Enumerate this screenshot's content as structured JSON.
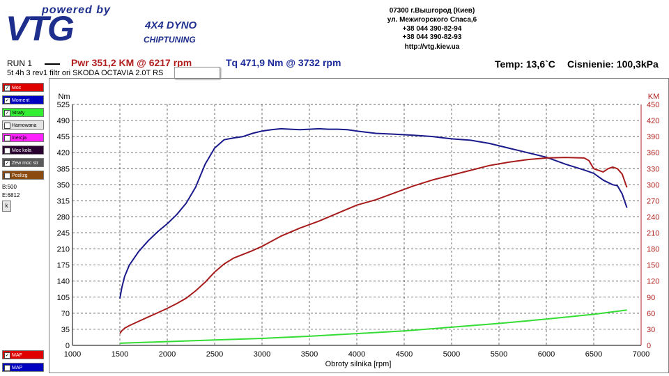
{
  "logo": {
    "powered": "powered by",
    "brand": "VTG",
    "line1": "4X4 DYNO",
    "line2": "CHIPTUNING"
  },
  "address": [
    "07300 г.Вышгород (Киев)",
    "ул. Межигорского Спаса,6",
    "+38 044 390-82-94",
    "+38 044 390-82-93",
    "http://vtg.kiev.ua"
  ],
  "header": {
    "run": "RUN 1",
    "power": "Pwr  351,2 KM @ 6217 rpm",
    "torque": "Tq 471,9 Nm @ 3732 rpm",
    "temp": "Temp: 13,6`C",
    "pressure": "Cisnienie: 100,3kPa",
    "description": "5t 4h 3 rev1 filtr ori SKODA OCTAVIA 2.0T RS"
  },
  "panel": {
    "items": [
      {
        "label": "Moc",
        "color": "#e00000",
        "checked": true
      },
      {
        "label": "Moment",
        "color": "#0000c0",
        "checked": true
      },
      {
        "label": "Straty",
        "color": "#33ee33",
        "checked": true
      },
      {
        "label": "Hamowana",
        "color": "#e4e4e4",
        "checked": false
      },
      {
        "label": "Inercja",
        "color": "#ff22ff",
        "checked": false
      },
      {
        "label": "Moc koła",
        "color": "#2a0030",
        "checked": false
      },
      {
        "label": "Zew moc str",
        "color": "#5a5a5a",
        "checked": true
      },
      {
        "label": "Poslizg",
        "color": "#8a4a10",
        "checked": false
      }
    ],
    "b_value": "B:500",
    "e_value": "E:6812",
    "k_button": "k",
    "bottom_items": [
      {
        "label": "MAF",
        "color": "#e00000",
        "checked": true
      },
      {
        "label": "MAP",
        "color": "#0000c0",
        "checked": false
      }
    ]
  },
  "chart_data": {
    "type": "line",
    "xlabel": "Obroty silnika [rpm]",
    "xlim": [
      1000,
      7000
    ],
    "x_ticks": [
      1000,
      1500,
      2000,
      2500,
      3000,
      3500,
      4000,
      4500,
      5000,
      5500,
      6000,
      6500,
      7000
    ],
    "left_axis": {
      "unit": "Nm",
      "lim": [
        0,
        525
      ],
      "ticks": [
        0,
        35,
        70,
        105,
        140,
        175,
        210,
        245,
        280,
        315,
        350,
        385,
        420,
        455,
        490,
        525
      ]
    },
    "right_axis": {
      "unit": "KM",
      "lim": [
        0,
        450
      ],
      "ticks": [
        0,
        30,
        60,
        90,
        120,
        150,
        180,
        210,
        240,
        270,
        300,
        330,
        360,
        390,
        420,
        450
      ]
    },
    "grid": true,
    "series": [
      {
        "key": "torque",
        "axis": "left",
        "color": "#1a1a8c",
        "x": [
          1500,
          1520,
          1550,
          1600,
          1700,
          1800,
          1900,
          2000,
          2100,
          2200,
          2300,
          2400,
          2500,
          2600,
          2700,
          2800,
          2900,
          3000,
          3100,
          3200,
          3300,
          3400,
          3500,
          3600,
          3700,
          3800,
          3900,
          4000,
          4200,
          4400,
          4600,
          4800,
          5000,
          5200,
          5400,
          5600,
          5800,
          6000,
          6200,
          6400,
          6500,
          6600,
          6700,
          6750,
          6800,
          6850
        ],
        "y": [
          102,
          125,
          150,
          175,
          205,
          228,
          248,
          265,
          285,
          310,
          345,
          395,
          430,
          448,
          452,
          455,
          462,
          467,
          470,
          472,
          471,
          470,
          471,
          472,
          471,
          471,
          470,
          467,
          462,
          460,
          458,
          455,
          450,
          447,
          440,
          430,
          420,
          410,
          395,
          382,
          375,
          360,
          350,
          348,
          330,
          300
        ]
      },
      {
        "key": "power",
        "axis": "right",
        "color": "#a81c1c",
        "x": [
          1500,
          1520,
          1550,
          1600,
          1700,
          1800,
          1900,
          2000,
          2100,
          2200,
          2300,
          2400,
          2500,
          2600,
          2700,
          2800,
          2900,
          3000,
          3200,
          3400,
          3600,
          3800,
          4000,
          4200,
          4400,
          4600,
          4800,
          5000,
          5200,
          5400,
          5600,
          5800,
          6000,
          6200,
          6400,
          6450,
          6500,
          6600,
          6650,
          6700,
          6750,
          6800,
          6850
        ],
        "y": [
          22,
          27,
          32,
          37,
          45,
          53,
          61,
          69,
          78,
          88,
          102,
          118,
          137,
          152,
          163,
          170,
          177,
          185,
          204,
          219,
          232,
          247,
          262,
          272,
          285,
          298,
          309,
          318,
          327,
          336,
          342,
          347,
          350,
          351,
          350,
          345,
          330,
          324,
          330,
          333,
          330,
          320,
          295
        ]
      },
      {
        "key": "losses",
        "axis": "right",
        "color": "#33dd33",
        "x": [
          1500,
          2000,
          2500,
          3000,
          3500,
          4000,
          4500,
          5000,
          5500,
          6000,
          6500,
          6850
        ],
        "y": [
          4,
          7,
          10,
          13,
          17,
          22,
          27,
          34,
          41,
          49,
          58,
          66
        ]
      }
    ]
  }
}
